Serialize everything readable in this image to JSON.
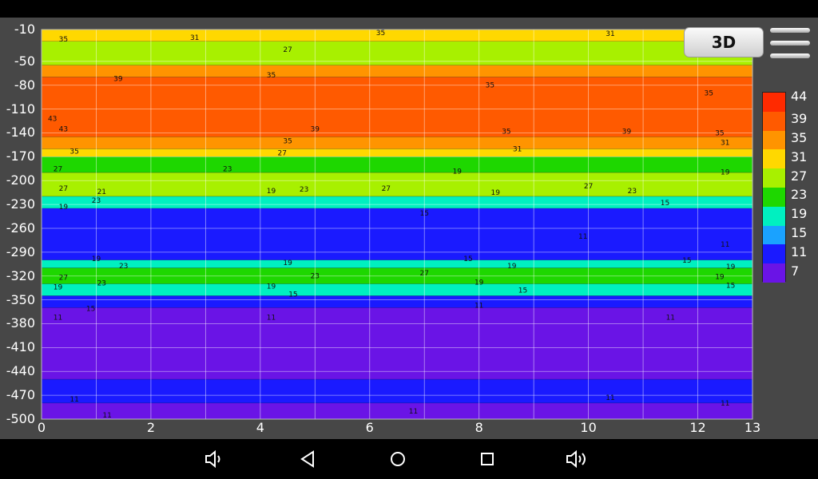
{
  "chart_data": {
    "type": "heatmap",
    "title": "",
    "xlabel": "",
    "ylabel": "",
    "xlim": [
      0,
      13
    ],
    "ylim": [
      -500,
      -10
    ],
    "x_ticks": [
      "0",
      "2",
      "4",
      "6",
      "8",
      "10",
      "12",
      "13"
    ],
    "y_ticks": [
      "-10",
      "-50",
      "-80",
      "-110",
      "-140",
      "-170",
      "-200",
      "-230",
      "-260",
      "-290",
      "-320",
      "-350",
      "-380",
      "-410",
      "-440",
      "-470",
      "-500"
    ],
    "grid": true,
    "colorbar": {
      "levels": [
        "44",
        "39",
        "35",
        "31",
        "27",
        "23",
        "19",
        "15",
        "11",
        "7"
      ],
      "colors": [
        "#ff2a00",
        "#ff5a00",
        "#ff9400",
        "#ffd800",
        "#a8f000",
        "#1ed700",
        "#00f0c0",
        "#1aa2ff",
        "#1a1aff",
        "#6a14e6"
      ]
    },
    "bands": [
      {
        "from": -10,
        "to": -25,
        "color": "#ffd800"
      },
      {
        "from": -25,
        "to": -55,
        "color": "#a8f000"
      },
      {
        "from": -55,
        "to": -70,
        "color": "#ff9400"
      },
      {
        "from": -70,
        "to": -145,
        "color": "#ff5a00"
      },
      {
        "from": -145,
        "to": -160,
        "color": "#ff9400"
      },
      {
        "from": -160,
        "to": -170,
        "color": "#ffd800"
      },
      {
        "from": -170,
        "to": -190,
        "color": "#1ed700"
      },
      {
        "from": -190,
        "to": -220,
        "color": "#a8f000"
      },
      {
        "from": -220,
        "to": -235,
        "color": "#00f0c0"
      },
      {
        "from": -235,
        "to": -300,
        "color": "#1a1aff"
      },
      {
        "from": -300,
        "to": -310,
        "color": "#00f0c0"
      },
      {
        "from": -310,
        "to": -330,
        "color": "#1ed700"
      },
      {
        "from": -330,
        "to": -345,
        "color": "#00f0c0"
      },
      {
        "from": -345,
        "to": -360,
        "color": "#1a1aff"
      },
      {
        "from": -360,
        "to": -450,
        "color": "#6a14e6"
      },
      {
        "from": -450,
        "to": -480,
        "color": "#1a1aff"
      },
      {
        "from": -480,
        "to": -500,
        "color": "#6a14e6"
      }
    ],
    "contour_labels": [
      {
        "x": 0.4,
        "y": -22,
        "text": "35"
      },
      {
        "x": 2.8,
        "y": -20,
        "text": "31"
      },
      {
        "x": 4.5,
        "y": -35,
        "text": "27"
      },
      {
        "x": 6.2,
        "y": -14,
        "text": "35"
      },
      {
        "x": 10.4,
        "y": -15,
        "text": "31"
      },
      {
        "x": 1.4,
        "y": -72,
        "text": "39"
      },
      {
        "x": 4.2,
        "y": -67,
        "text": "35"
      },
      {
        "x": 8.2,
        "y": -80,
        "text": "35"
      },
      {
        "x": 12.2,
        "y": -90,
        "text": "35"
      },
      {
        "x": 0.2,
        "y": -122,
        "text": "43"
      },
      {
        "x": 0.4,
        "y": -135,
        "text": "43"
      },
      {
        "x": 5.0,
        "y": -135,
        "text": "39"
      },
      {
        "x": 10.7,
        "y": -138,
        "text": "39"
      },
      {
        "x": 4.5,
        "y": -150,
        "text": "35"
      },
      {
        "x": 8.5,
        "y": -138,
        "text": "35"
      },
      {
        "x": 12.4,
        "y": -140,
        "text": "35"
      },
      {
        "x": 0.6,
        "y": -163,
        "text": "35"
      },
      {
        "x": 4.4,
        "y": -165,
        "text": "27"
      },
      {
        "x": 8.7,
        "y": -160,
        "text": "31"
      },
      {
        "x": 12.5,
        "y": -152,
        "text": "31"
      },
      {
        "x": 3.4,
        "y": -185,
        "text": "23"
      },
      {
        "x": 0.3,
        "y": -185,
        "text": "27"
      },
      {
        "x": 7.6,
        "y": -188,
        "text": "19"
      },
      {
        "x": 12.5,
        "y": -189,
        "text": "19"
      },
      {
        "x": 0.4,
        "y": -210,
        "text": "27"
      },
      {
        "x": 1.1,
        "y": -214,
        "text": "21"
      },
      {
        "x": 4.2,
        "y": -213,
        "text": "19"
      },
      {
        "x": 4.8,
        "y": -211,
        "text": "23"
      },
      {
        "x": 6.3,
        "y": -210,
        "text": "27"
      },
      {
        "x": 8.3,
        "y": -215,
        "text": "19"
      },
      {
        "x": 10.0,
        "y": -207,
        "text": "27"
      },
      {
        "x": 10.8,
        "y": -213,
        "text": "23"
      },
      {
        "x": 0.4,
        "y": -233,
        "text": "19"
      },
      {
        "x": 1.0,
        "y": -225,
        "text": "23"
      },
      {
        "x": 7.0,
        "y": -241,
        "text": "15"
      },
      {
        "x": 11.4,
        "y": -228,
        "text": "15"
      },
      {
        "x": 9.9,
        "y": -270,
        "text": "11"
      },
      {
        "x": 12.5,
        "y": -280,
        "text": "11"
      },
      {
        "x": 1.0,
        "y": -298,
        "text": "19"
      },
      {
        "x": 1.5,
        "y": -307,
        "text": "23"
      },
      {
        "x": 4.5,
        "y": -303,
        "text": "19"
      },
      {
        "x": 7.8,
        "y": -298,
        "text": "15"
      },
      {
        "x": 8.6,
        "y": -307,
        "text": "19"
      },
      {
        "x": 11.8,
        "y": -300,
        "text": "15"
      },
      {
        "x": 12.6,
        "y": -308,
        "text": "19"
      },
      {
        "x": 0.4,
        "y": -322,
        "text": "27"
      },
      {
        "x": 1.1,
        "y": -329,
        "text": "23"
      },
      {
        "x": 5.0,
        "y": -320,
        "text": "23"
      },
      {
        "x": 7.0,
        "y": -316,
        "text": "27"
      },
      {
        "x": 12.4,
        "y": -321,
        "text": "19"
      },
      {
        "x": 0.3,
        "y": -334,
        "text": "19"
      },
      {
        "x": 4.2,
        "y": -333,
        "text": "19"
      },
      {
        "x": 8.0,
        "y": -328,
        "text": "19"
      },
      {
        "x": 8.8,
        "y": -338,
        "text": "15"
      },
      {
        "x": 12.6,
        "y": -332,
        "text": "15"
      },
      {
        "x": 4.6,
        "y": -343,
        "text": "15"
      },
      {
        "x": 0.9,
        "y": -361,
        "text": "15"
      },
      {
        "x": 8.0,
        "y": -357,
        "text": "11"
      },
      {
        "x": 0.3,
        "y": -372,
        "text": "11"
      },
      {
        "x": 4.2,
        "y": -372,
        "text": "11"
      },
      {
        "x": 11.5,
        "y": -372,
        "text": "11"
      },
      {
        "x": 0.6,
        "y": -475,
        "text": "11"
      },
      {
        "x": 10.4,
        "y": -473,
        "text": "11"
      },
      {
        "x": 1.2,
        "y": -495,
        "text": "11"
      },
      {
        "x": 6.8,
        "y": -490,
        "text": "11"
      },
      {
        "x": 12.5,
        "y": -480,
        "text": "11"
      }
    ]
  },
  "toolbar": {
    "view3d_label": "3D"
  },
  "icons": {
    "menu": "hamburger-menu-icon",
    "volume_down": "volume-down-icon",
    "back": "back-triangle-icon",
    "home": "home-circle-icon",
    "recents": "recents-square-icon",
    "volume_up": "volume-up-icon"
  }
}
